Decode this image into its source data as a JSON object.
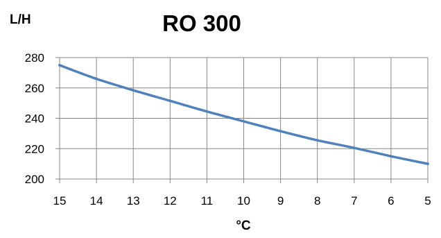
{
  "chart_data": {
    "type": "line",
    "title": "RO 300",
    "ylabel": "L/H",
    "xlabel": "°C",
    "x": [
      15,
      14,
      13,
      12,
      11,
      10,
      9,
      8,
      7,
      6,
      5
    ],
    "x_ticks": [
      "15",
      "14",
      "13",
      "12",
      "11",
      "10",
      "9",
      "8",
      "7",
      "6",
      "5"
    ],
    "y_ticks": [
      "280",
      "260",
      "240",
      "220",
      "200"
    ],
    "series": [
      {
        "values": [
          275,
          266,
          258.5,
          251.5,
          244.5,
          238,
          231.5,
          225.5,
          220.5,
          215,
          210
        ],
        "color": "#4f81bd"
      }
    ],
    "xlim": [
      15,
      5
    ],
    "ylim": [
      200,
      280
    ],
    "x_reversed": true,
    "grid": true,
    "legend": "none",
    "gridline_color": "#878787"
  }
}
